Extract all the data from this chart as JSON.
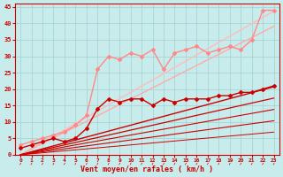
{
  "background_color": "#c8ecec",
  "grid_color": "#aad4d4",
  "xlabel": "Vent moyen/en rafales ( km/h )",
  "xlabel_color": "#cc0000",
  "tick_color": "#cc0000",
  "xlim": [
    -0.5,
    23.5
  ],
  "ylim": [
    0,
    46
  ],
  "yticks": [
    0,
    5,
    10,
    15,
    20,
    25,
    30,
    35,
    40,
    45
  ],
  "xticks": [
    0,
    1,
    2,
    3,
    4,
    5,
    6,
    7,
    8,
    9,
    10,
    11,
    12,
    13,
    14,
    15,
    16,
    17,
    18,
    19,
    20,
    21,
    22,
    23
  ],
  "series": [
    {
      "x": [
        0,
        1,
        2,
        3,
        4,
        5,
        6,
        7,
        8,
        9,
        10,
        11,
        12,
        13,
        14,
        15,
        16,
        17,
        18,
        19,
        20,
        21,
        22,
        23
      ],
      "y": [
        0,
        1.9,
        3.8,
        5.7,
        7.6,
        9.5,
        11.4,
        13.3,
        15.2,
        17.1,
        19,
        20.9,
        22.8,
        24.7,
        26.6,
        28.5,
        30.4,
        32.3,
        34.2,
        36.1,
        38,
        39.9,
        41.8,
        43.7
      ],
      "color": "#ffbbbb",
      "lw": 1.0,
      "marker": null,
      "zorder": 2
    },
    {
      "x": [
        0,
        1,
        2,
        3,
        4,
        5,
        6,
        7,
        8,
        9,
        10,
        11,
        12,
        13,
        14,
        15,
        16,
        17,
        18,
        19,
        20,
        21,
        22,
        23
      ],
      "y": [
        0,
        1.7,
        3.4,
        5.1,
        6.8,
        8.5,
        10.2,
        11.9,
        13.6,
        15.3,
        17,
        18.7,
        20.4,
        22.1,
        23.8,
        25.5,
        27.2,
        28.9,
        30.6,
        32.3,
        34,
        35.7,
        37.4,
        39.1
      ],
      "color": "#ffaaaa",
      "lw": 1.0,
      "marker": null,
      "zorder": 2
    },
    {
      "x": [
        0,
        1,
        2,
        3,
        4,
        5,
        6,
        7,
        8,
        9,
        10,
        11,
        12,
        13,
        14,
        15,
        16,
        17,
        18,
        19,
        20,
        21,
        22,
        23
      ],
      "y": [
        3,
        4,
        5,
        6,
        7,
        9,
        12,
        26,
        30,
        29,
        31,
        30,
        32,
        26,
        31,
        32,
        33,
        31,
        32,
        33,
        32,
        35,
        44,
        44
      ],
      "color": "#ff8888",
      "lw": 1.0,
      "marker": "D",
      "ms": 2.0,
      "zorder": 3
    },
    {
      "x": [
        0,
        1,
        2,
        3,
        4,
        5,
        6,
        7,
        8,
        9,
        10,
        11,
        12,
        13,
        14,
        15,
        16,
        17,
        18,
        19,
        20,
        21,
        22,
        23
      ],
      "y": [
        2,
        3,
        4,
        5,
        4,
        5,
        8,
        14,
        17,
        16,
        17,
        17,
        15,
        17,
        16,
        17,
        17,
        17,
        18,
        18,
        19,
        19,
        20,
        21
      ],
      "color": "#cc0000",
      "lw": 1.0,
      "marker": "D",
      "ms": 2.0,
      "zorder": 4
    },
    {
      "x": [
        0,
        23
      ],
      "y": [
        0,
        20.7
      ],
      "color": "#cc0000",
      "lw": 1.0,
      "marker": null,
      "zorder": 3
    },
    {
      "x": [
        0,
        23
      ],
      "y": [
        0,
        17.25
      ],
      "color": "#cc0000",
      "lw": 0.9,
      "marker": null,
      "zorder": 3
    },
    {
      "x": [
        0,
        23
      ],
      "y": [
        0,
        13.8
      ],
      "color": "#cc0000",
      "lw": 0.8,
      "marker": null,
      "zorder": 3
    },
    {
      "x": [
        0,
        23
      ],
      "y": [
        0,
        10.35
      ],
      "color": "#cc0000",
      "lw": 0.8,
      "marker": null,
      "zorder": 3
    },
    {
      "x": [
        0,
        23
      ],
      "y": [
        0,
        6.9
      ],
      "color": "#cc0000",
      "lw": 0.7,
      "marker": null,
      "zorder": 3
    }
  ]
}
